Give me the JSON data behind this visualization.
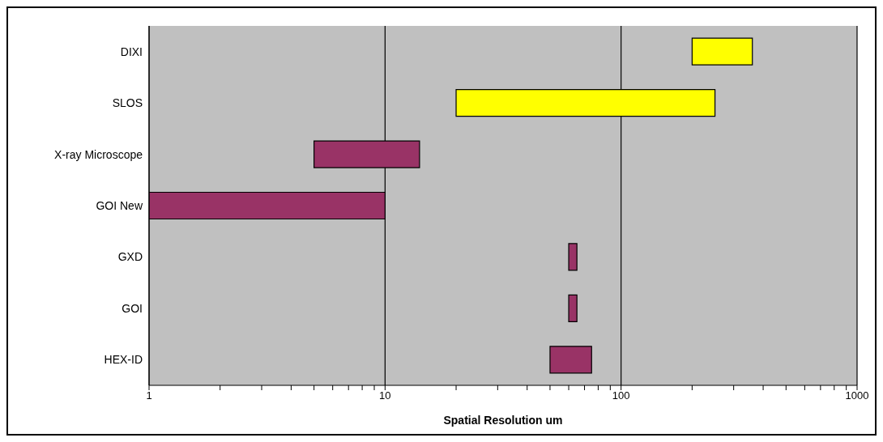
{
  "chart_data": {
    "type": "bar",
    "orientation": "horizontal",
    "log": "x",
    "xlabel": "Spatial Resolution um",
    "categories": [
      "DIXI",
      "SLOS",
      "X-ray Microscope",
      "GOI New",
      "GXD",
      "GOI",
      "HEX-ID"
    ],
    "base": [
      200,
      20,
      5,
      1,
      60,
      60,
      50
    ],
    "values": [
      160,
      230,
      9,
      9,
      5,
      5,
      25
    ],
    "colors": [
      "#ffff00",
      "#ffff00",
      "#993366",
      "#993366",
      "#993366",
      "#993366",
      "#993366"
    ],
    "xlim": [
      1,
      1000
    ],
    "xticks": [
      1,
      {
        "value": 2,
        "label": null
      },
      {
        "value": 3,
        "label": null
      },
      {
        "value": 4,
        "label": null
      },
      {
        "value": 5,
        "label": null
      },
      {
        "value": 6,
        "label": null
      },
      {
        "value": 7,
        "label": null
      },
      {
        "value": 8,
        "label": null
      },
      {
        "value": 9,
        "label": null
      },
      10,
      {
        "value": 20,
        "label": null
      },
      {
        "value": 30,
        "label": null
      },
      {
        "value": 40,
        "label": null
      },
      {
        "value": 50,
        "label": null
      },
      {
        "value": 60,
        "label": null
      },
      {
        "value": 70,
        "label": null
      },
      {
        "value": 80,
        "label": null
      },
      {
        "value": 90,
        "label": null
      },
      100,
      {
        "value": 200,
        "label": null
      },
      {
        "value": 300,
        "label": null
      },
      {
        "value": 400,
        "label": null
      },
      {
        "value": 500,
        "label": null
      },
      {
        "value": 600,
        "label": null
      },
      {
        "value": 700,
        "label": null
      },
      {
        "value": 800,
        "label": null
      },
      {
        "value": 900,
        "label": null
      },
      1000
    ],
    "grid": "x",
    "legend": false
  }
}
